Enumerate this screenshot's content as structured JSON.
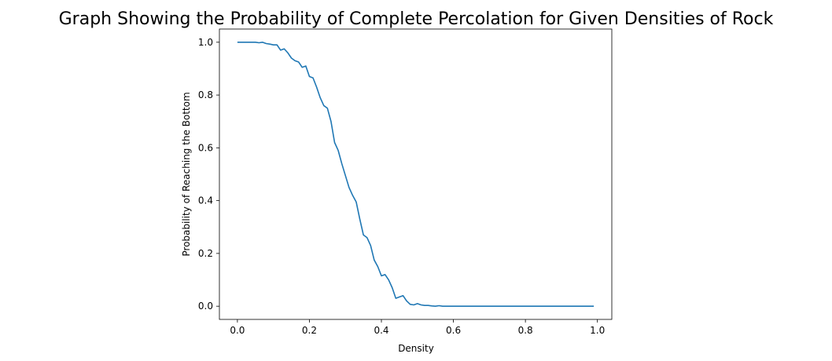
{
  "chart_data": {
    "type": "line",
    "title": "Graph Showing the Probability of Complete Percolation for Given Densities of Rock",
    "xlabel": "Density",
    "ylabel": "Probability of Reaching the Bottom",
    "xlim": [
      -0.05,
      1.04
    ],
    "ylim": [
      -0.05,
      1.05
    ],
    "x_ticks": [
      0.0,
      0.2,
      0.4,
      0.6,
      0.8,
      1.0
    ],
    "x_tick_labels": [
      "0.0",
      "0.2",
      "0.4",
      "0.6",
      "0.8",
      "1.0"
    ],
    "y_ticks": [
      0.0,
      0.2,
      0.4,
      0.6,
      0.8,
      1.0
    ],
    "y_tick_labels": [
      "0.0",
      "0.2",
      "0.4",
      "0.6",
      "0.8",
      "1.0"
    ],
    "grid": false,
    "series": [
      {
        "color": "#1f77b4",
        "x": [
          0.0,
          0.01,
          0.02,
          0.03,
          0.04,
          0.05,
          0.06,
          0.07,
          0.08,
          0.09,
          0.1,
          0.11,
          0.12,
          0.13,
          0.14,
          0.15,
          0.16,
          0.17,
          0.18,
          0.19,
          0.2,
          0.21,
          0.22,
          0.23,
          0.24,
          0.25,
          0.26,
          0.27,
          0.28,
          0.29,
          0.3,
          0.31,
          0.32,
          0.33,
          0.34,
          0.35,
          0.36,
          0.37,
          0.38,
          0.39,
          0.4,
          0.41,
          0.42,
          0.43,
          0.44,
          0.45,
          0.46,
          0.47,
          0.48,
          0.49,
          0.5,
          0.51,
          0.52,
          0.53,
          0.54,
          0.55,
          0.56,
          0.57,
          0.58,
          0.59,
          0.6,
          0.65,
          0.7,
          0.75,
          0.8,
          0.85,
          0.9,
          0.95,
          0.99
        ],
        "y": [
          1.0,
          1.0,
          1.0,
          1.0,
          1.0,
          1.0,
          0.998,
          1.0,
          0.995,
          0.993,
          0.99,
          0.99,
          0.97,
          0.975,
          0.96,
          0.94,
          0.93,
          0.925,
          0.905,
          0.91,
          0.87,
          0.865,
          0.83,
          0.79,
          0.76,
          0.75,
          0.7,
          0.62,
          0.59,
          0.54,
          0.495,
          0.45,
          0.42,
          0.395,
          0.33,
          0.27,
          0.26,
          0.23,
          0.175,
          0.15,
          0.115,
          0.12,
          0.1,
          0.07,
          0.03,
          0.035,
          0.04,
          0.02,
          0.007,
          0.005,
          0.01,
          0.005,
          0.003,
          0.003,
          0.001,
          0.0,
          0.002,
          0.0,
          0.0,
          0.0,
          0.0,
          0.0,
          0.0,
          0.0,
          0.0,
          0.0,
          0.0,
          0.0,
          0.0
        ]
      }
    ]
  }
}
